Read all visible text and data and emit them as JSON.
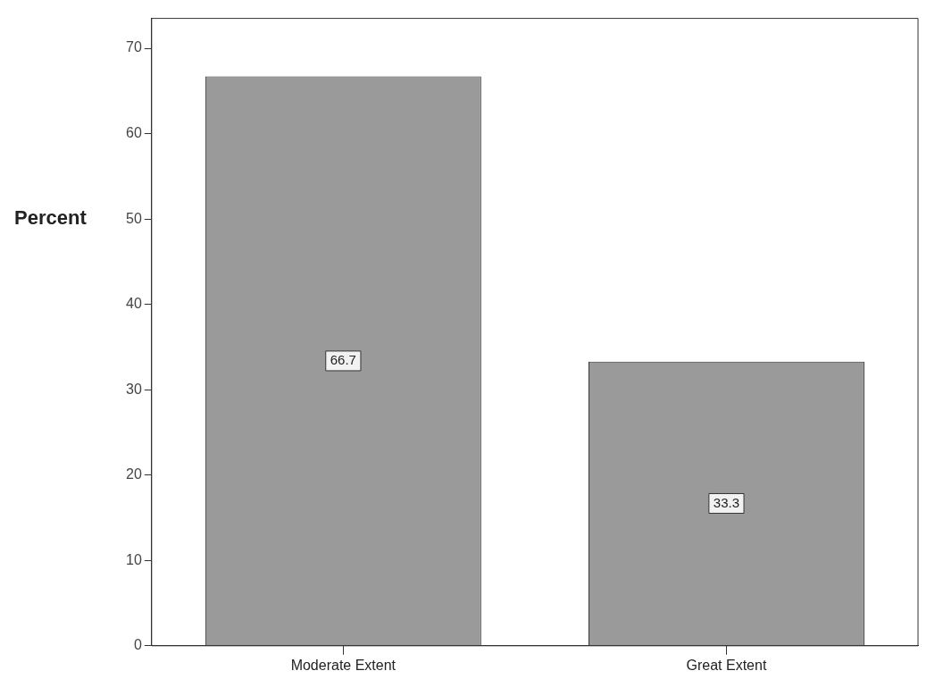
{
  "chart_data": {
    "type": "bar",
    "ylabel": "Percent",
    "categories": [
      "Moderate Extent",
      "Great Extent"
    ],
    "values": [
      66.7,
      33.3
    ],
    "color": "#9a9a9a",
    "ylim": [
      0,
      73.5
    ],
    "yticks": [
      0,
      10,
      20,
      30,
      40,
      50,
      60,
      70
    ],
    "grid": false,
    "data_labels": true,
    "legend": false
  }
}
